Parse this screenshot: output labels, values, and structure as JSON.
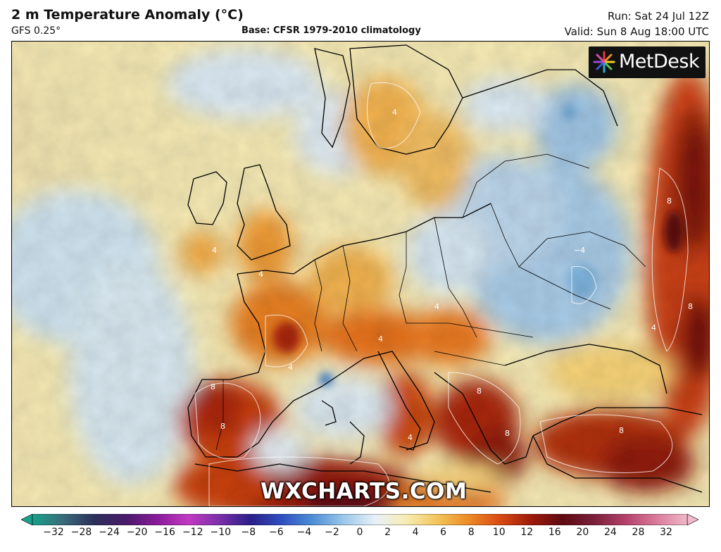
{
  "header": {
    "title": "2 m Temperature Anomaly (°C)",
    "model": "GFS 0.25°",
    "base": "Base: CFSR 1979-2010 climatology",
    "run": "Run: Sat 24 Jul 12Z",
    "valid": "Valid: Sun 8 Aug 18:00 UTC"
  },
  "branding": {
    "logo": "MetDesk",
    "watermark": "WXCHARTS.COM"
  },
  "colorbar": {
    "ticks": [
      "−32",
      "−28",
      "−24",
      "−20",
      "−16",
      "−12",
      "−10",
      "−8",
      "−6",
      "−4",
      "−2",
      "0",
      "2",
      "4",
      "6",
      "8",
      "10",
      "12",
      "16",
      "20",
      "24",
      "28",
      "32"
    ],
    "colors": [
      "#1aa18a",
      "#3a6a7a",
      "#2b2f59",
      "#4a1a6b",
      "#8a1a9a",
      "#c23ac2",
      "#7a2fa8",
      "#2b1f8a",
      "#2f4fc0",
      "#4f8fd6",
      "#9cc8ea",
      "#e8f1f8",
      "#f7ecb0",
      "#f3c45a",
      "#ed8a26",
      "#d94a12",
      "#9e1a0a",
      "#5e0a12",
      "#7a1f3a",
      "#b3406a",
      "#d97a9a",
      "#f0b8c8"
    ],
    "unit": "°C"
  },
  "map": {
    "region": "Europe",
    "contour_labels": [
      "4",
      "4",
      "4",
      "4",
      "4",
      "4",
      "8",
      "8",
      "8",
      "8",
      "8",
      "−4",
      "4",
      "8",
      "4",
      "8"
    ]
  }
}
